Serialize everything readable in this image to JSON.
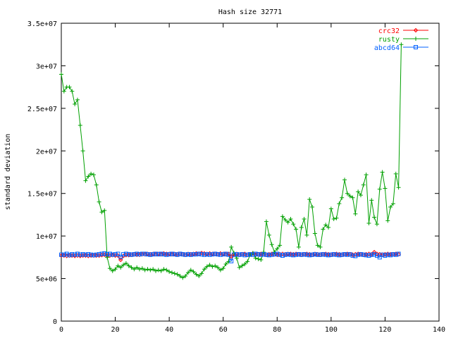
{
  "chart_data": {
    "type": "line",
    "title": "Hash size 32771",
    "xlabel": "",
    "ylabel": "standard deviation",
    "xlim": [
      0,
      140
    ],
    "ylim": [
      0,
      35000000
    ],
    "x_ticks": [
      0,
      20,
      40,
      60,
      80,
      100,
      120,
      140
    ],
    "y_ticks": [
      0,
      5000000,
      10000000,
      15000000,
      20000000,
      25000000,
      30000000,
      35000000
    ],
    "x_tick_labels": [
      "0",
      "20",
      "40",
      "60",
      "80",
      "100",
      "120",
      "140"
    ],
    "y_tick_labels": [
      "0",
      "5e+06",
      "1e+07",
      "1.5e+07",
      "2e+07",
      "2.5e+07",
      "3e+07",
      "3.5e+07"
    ],
    "grid": false,
    "legend_position": "top-right",
    "series": [
      {
        "name": "crc32",
        "color": "#ff0000",
        "marker": "diamond",
        "values": [
          7700000,
          7700000,
          7650000,
          7700000,
          7700000,
          7650000,
          7700000,
          7650000,
          7700000,
          7700000,
          7650000,
          7700000,
          7700000,
          7700000,
          7700000,
          7750000,
          7800000,
          7700000,
          7700000,
          7750000,
          7700000,
          7700000,
          7200000,
          7650000,
          7750000,
          7750000,
          7800000,
          7850000,
          7800000,
          7800000,
          7850000,
          7850000,
          7900000,
          7850000,
          7900000,
          7850000,
          7900000,
          7850000,
          7950000,
          7900000,
          7900000,
          7850000,
          7900000,
          7850000,
          7900000,
          7850000,
          7800000,
          7900000,
          7850000,
          7900000,
          7950000,
          7900000,
          8000000,
          7950000,
          7900000,
          7950000,
          7900000,
          7900000,
          7850000,
          7950000,
          7900000,
          7850000,
          7900000,
          7600000,
          7850000,
          7900000,
          7800000,
          7850000,
          7900000,
          7800000,
          7850000,
          7950000,
          7800000,
          7850000,
          7900000,
          7850000,
          7800000,
          7850000,
          7900000,
          7850000,
          7800000,
          7850000,
          7900000,
          7850000,
          7900000,
          7900000,
          7850000,
          7900000,
          7850000,
          7800000,
          7850000,
          7900000,
          7850000,
          7800000,
          7900000,
          7850000,
          7800000,
          7850000,
          7900000,
          7850000,
          7800000,
          7850000,
          7900000,
          7850000,
          7800000,
          7850000,
          7900000,
          7850000,
          7800000,
          7850000,
          7900000,
          7850000,
          7800000,
          7850000,
          7900000,
          7850000,
          8100000,
          7900000,
          7850000,
          7800000,
          7850000,
          7900000,
          7850000,
          7850000,
          7900000,
          7850000
        ]
      },
      {
        "name": "rusty",
        "color": "#00a000",
        "marker": "plus",
        "values": [
          29000000,
          27000000,
          27500000,
          27500000,
          27000000,
          25500000,
          26000000,
          23000000,
          20000000,
          16500000,
          17000000,
          17300000,
          17200000,
          16000000,
          14000000,
          12800000,
          13000000,
          7500000,
          6200000,
          5900000,
          6100000,
          6500000,
          6300000,
          6600000,
          6800000,
          6500000,
          6300000,
          6100000,
          6300000,
          6100000,
          6200000,
          6000000,
          6100000,
          6000000,
          6100000,
          5900000,
          6000000,
          5900000,
          6100000,
          6000000,
          5800000,
          5700000,
          5600000,
          5500000,
          5300000,
          5100000,
          5300000,
          5700000,
          6000000,
          5800000,
          5500000,
          5300000,
          5600000,
          6100000,
          6400000,
          6600000,
          6400000,
          6500000,
          6300000,
          6000000,
          6200000,
          6700000,
          7000000,
          8700000,
          8000000,
          7400000,
          6300000,
          6500000,
          6700000,
          7000000,
          7800000,
          8000000,
          7400000,
          7300000,
          7200000,
          8100000,
          11700000,
          10100000,
          9000000,
          8100000,
          8500000,
          8900000,
          12300000,
          11900000,
          11600000,
          12000000,
          11400000,
          10800000,
          8700000,
          11000000,
          12000000,
          10100000,
          14300000,
          13400000,
          10300000,
          8900000,
          8700000,
          10800000,
          11300000,
          11000000,
          13200000,
          12000000,
          12100000,
          13800000,
          14500000,
          16600000,
          15000000,
          14700000,
          14500000,
          12600000,
          15200000,
          14800000,
          16000000,
          17200000,
          11500000,
          14200000,
          12200000,
          11400000,
          15500000,
          17500000,
          15600000,
          11800000,
          13400000,
          13800000,
          17300000,
          15700000,
          32500000
        ]
      },
      {
        "name": "abcd64",
        "color": "#0060ff",
        "marker": "square",
        "values": [
          7800000,
          7800000,
          7900000,
          7750000,
          7850000,
          7800000,
          7900000,
          7800000,
          7850000,
          7800000,
          7850000,
          7800000,
          7750000,
          7800000,
          7850000,
          7900000,
          7950000,
          7850000,
          7900000,
          7800000,
          7850000,
          7900000,
          7550000,
          7850000,
          7900000,
          7850000,
          7800000,
          7850000,
          7900000,
          7850000,
          7900000,
          7900000,
          7850000,
          7800000,
          7850000,
          7900000,
          7850000,
          7900000,
          7850000,
          7800000,
          7850000,
          7900000,
          7850000,
          7800000,
          7900000,
          7850000,
          7800000,
          7850000,
          7800000,
          7850000,
          7850000,
          7900000,
          7850000,
          7800000,
          7850000,
          7800000,
          7850000,
          7900000,
          7850000,
          7800000,
          7850000,
          7900000,
          7800000,
          7050000,
          7800000,
          7850000,
          7800000,
          7850000,
          7750000,
          7800000,
          7850000,
          7800000,
          7900000,
          7850000,
          7800000,
          7850000,
          7800000,
          7750000,
          7800000,
          7850000,
          7900000,
          7800000,
          7700000,
          7800000,
          7850000,
          7800000,
          7750000,
          7800000,
          7850000,
          7800000,
          7850000,
          7800000,
          7750000,
          7800000,
          7850000,
          7800000,
          7800000,
          7850000,
          7800000,
          7750000,
          7800000,
          7850000,
          7800000,
          7750000,
          7800000,
          7850000,
          7800000,
          7850000,
          7700000,
          7650000,
          7800000,
          7850000,
          7800000,
          7750000,
          7700000,
          7800000,
          7850000,
          7700000,
          7500000,
          7800000,
          7700000,
          7800000,
          7750000,
          7850000,
          7800000,
          7900000
        ]
      }
    ]
  }
}
